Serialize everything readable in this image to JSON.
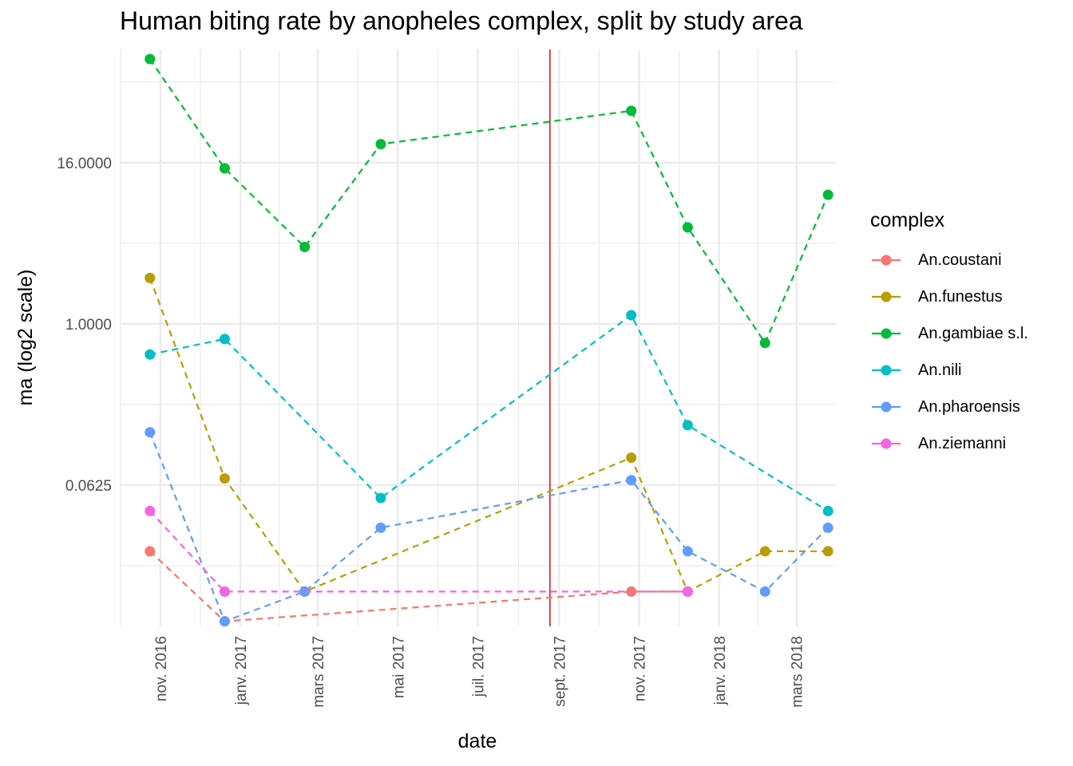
{
  "chart_data": {
    "type": "line",
    "title": "Human biting rate by anopheles complex, split by study area",
    "xlabel": "date",
    "ylabel": "ma (log2 scale)",
    "y_scale": "log2",
    "grid": true,
    "legend_position": "right",
    "legend_title": "complex",
    "x_range": [
      "2016-10-01",
      "2018-03-31"
    ],
    "x_ticks": [
      {
        "date": "2016-11-01",
        "label": "nov. 2016"
      },
      {
        "date": "2017-01-01",
        "label": "janv. 2017"
      },
      {
        "date": "2017-03-01",
        "label": "mars 2017"
      },
      {
        "date": "2017-05-01",
        "label": "mai 2017"
      },
      {
        "date": "2017-07-01",
        "label": "juil. 2017"
      },
      {
        "date": "2017-09-01",
        "label": "sept. 2017"
      },
      {
        "date": "2017-11-01",
        "label": "nov. 2017"
      },
      {
        "date": "2018-01-01",
        "label": "janv. 2018"
      },
      {
        "date": "2018-03-01",
        "label": "mars 2018"
      }
    ],
    "y_range": [
      0.0055,
      112
    ],
    "y_ticks": [
      {
        "value": 0.0625,
        "label": "0.0625"
      },
      {
        "value": 1,
        "label": "1.0000"
      },
      {
        "value": 16,
        "label": "16.0000"
      }
    ],
    "vline": {
      "date": "2017-08-25",
      "color": "#cc2222"
    },
    "series": [
      {
        "name": "An.coustani",
        "color": "#F8766D",
        "points": [
          [
            "2016-10-24",
            0.02
          ],
          [
            "2016-12-20",
            0.006
          ],
          [
            "2017-10-26",
            0.01
          ],
          [
            "2017-12-08",
            0.01
          ]
        ]
      },
      {
        "name": "An.funestus",
        "color": "#B79F00",
        "points": [
          [
            "2016-10-24",
            2.2
          ],
          [
            "2016-12-20",
            0.07
          ],
          [
            "2017-02-19",
            0.01
          ],
          [
            "2017-10-26",
            0.1
          ],
          [
            "2017-12-08",
            0.01
          ],
          [
            "2018-02-05",
            0.02
          ],
          [
            "2018-03-25",
            0.02
          ]
        ]
      },
      {
        "name": "An.gambiae s.l.",
        "color": "#00BA38",
        "points": [
          [
            "2016-10-24",
            95
          ],
          [
            "2016-12-20",
            14.5
          ],
          [
            "2017-02-19",
            3.75
          ],
          [
            "2017-04-18",
            22
          ],
          [
            "2017-10-26",
            39
          ],
          [
            "2017-12-08",
            5.25
          ],
          [
            "2018-02-05",
            0.72
          ],
          [
            "2018-03-25",
            9.2
          ]
        ]
      },
      {
        "name": "An.nili",
        "color": "#00BFC4",
        "points": [
          [
            "2016-10-24",
            0.59
          ],
          [
            "2016-12-20",
            0.77
          ],
          [
            "2017-04-18",
            0.05
          ],
          [
            "2017-10-26",
            1.16
          ],
          [
            "2017-12-08",
            0.175
          ],
          [
            "2018-03-25",
            0.04
          ]
        ]
      },
      {
        "name": "An.pharoensis",
        "color": "#619CFF",
        "points": [
          [
            "2016-10-24",
            0.155
          ],
          [
            "2016-12-20",
            0.006
          ],
          [
            "2017-02-19",
            0.01
          ],
          [
            "2017-04-18",
            0.03
          ],
          [
            "2017-10-26",
            0.068
          ],
          [
            "2017-12-08",
            0.02
          ],
          [
            "2018-02-05",
            0.01
          ],
          [
            "2018-03-25",
            0.03
          ]
        ]
      },
      {
        "name": "An.ziemanni",
        "color": "#F564E3",
        "points": [
          [
            "2016-10-24",
            0.04
          ],
          [
            "2016-12-20",
            0.01
          ],
          [
            "2017-12-08",
            0.01
          ]
        ]
      }
    ]
  }
}
